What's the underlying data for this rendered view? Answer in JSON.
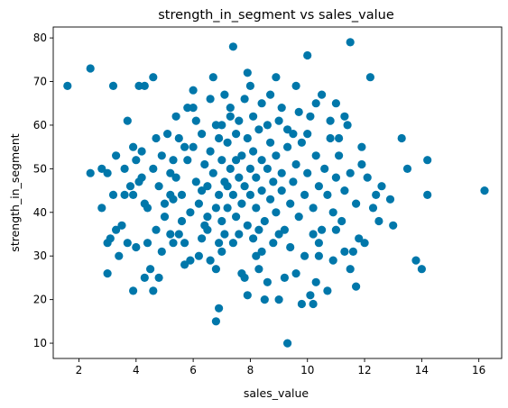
{
  "chart_data": {
    "type": "scatter",
    "title": "strength_in_segment vs sales_value",
    "xlabel": "sales_value",
    "ylabel": "strength_in_segment",
    "xlim": [
      1.1,
      16.8
    ],
    "ylim": [
      6.5,
      82.5
    ],
    "xticks": [
      2,
      4,
      6,
      8,
      10,
      12,
      14,
      16
    ],
    "yticks": [
      10,
      20,
      30,
      40,
      50,
      60,
      70,
      80
    ],
    "grid": false,
    "legend": "none",
    "point_color": "#0077aa",
    "points": [
      [
        1.6,
        69
      ],
      [
        2.4,
        73
      ],
      [
        2.4,
        49
      ],
      [
        2.8,
        41
      ],
      [
        2.8,
        50
      ],
      [
        3.0,
        26
      ],
      [
        3.0,
        33
      ],
      [
        3.1,
        34
      ],
      [
        3.2,
        69
      ],
      [
        3.2,
        44
      ],
      [
        3.3,
        36
      ],
      [
        3.4,
        30
      ],
      [
        3.5,
        37
      ],
      [
        3.6,
        44
      ],
      [
        3.7,
        61
      ],
      [
        3.7,
        33
      ],
      [
        3.9,
        22
      ],
      [
        3.9,
        44
      ],
      [
        3.9,
        55
      ],
      [
        4.0,
        32
      ],
      [
        4.1,
        69
      ],
      [
        4.1,
        47
      ],
      [
        4.2,
        54
      ],
      [
        4.3,
        69
      ],
      [
        4.3,
        42
      ],
      [
        4.3,
        25
      ],
      [
        4.4,
        33
      ],
      [
        4.5,
        27
      ],
      [
        4.6,
        22
      ],
      [
        4.6,
        71
      ],
      [
        4.7,
        57
      ],
      [
        4.8,
        25
      ],
      [
        4.9,
        31
      ],
      [
        5.0,
        42
      ],
      [
        5.2,
        49
      ],
      [
        5.3,
        43
      ],
      [
        5.3,
        33
      ],
      [
        5.4,
        62
      ],
      [
        5.5,
        35
      ],
      [
        5.6,
        38
      ],
      [
        5.7,
        55
      ],
      [
        5.7,
        28
      ],
      [
        5.8,
        64
      ],
      [
        5.9,
        29
      ],
      [
        6.0,
        68
      ],
      [
        6.1,
        61
      ],
      [
        6.2,
        30
      ],
      [
        6.3,
        45
      ],
      [
        6.5,
        36
      ],
      [
        6.6,
        29
      ],
      [
        6.7,
        71
      ],
      [
        6.8,
        27
      ],
      [
        6.8,
        15
      ],
      [
        6.9,
        18
      ],
      [
        6.9,
        57
      ],
      [
        7.0,
        31
      ],
      [
        7.1,
        67
      ],
      [
        7.2,
        46
      ],
      [
        7.4,
        78
      ],
      [
        7.5,
        52
      ],
      [
        7.6,
        35
      ],
      [
        7.7,
        26
      ],
      [
        7.8,
        25
      ],
      [
        7.9,
        21
      ],
      [
        7.9,
        72
      ],
      [
        8.0,
        69
      ],
      [
        8.1,
        62
      ],
      [
        8.2,
        30
      ],
      [
        8.3,
        27
      ],
      [
        8.4,
        31
      ],
      [
        8.5,
        20
      ],
      [
        8.6,
        24
      ],
      [
        8.7,
        67
      ],
      [
        8.9,
        71
      ],
      [
        9.0,
        20
      ],
      [
        9.2,
        25
      ],
      [
        9.3,
        10
      ],
      [
        9.5,
        58
      ],
      [
        9.6,
        26
      ],
      [
        9.6,
        69
      ],
      [
        9.8,
        19
      ],
      [
        10.0,
        76
      ],
      [
        10.1,
        21
      ],
      [
        10.2,
        19
      ],
      [
        10.3,
        24
      ],
      [
        10.4,
        30
      ],
      [
        10.5,
        67
      ],
      [
        10.7,
        22
      ],
      [
        11.0,
        65
      ],
      [
        11.3,
        31
      ],
      [
        11.5,
        79
      ],
      [
        11.5,
        27
      ],
      [
        11.7,
        23
      ],
      [
        11.9,
        51
      ],
      [
        12.0,
        33
      ],
      [
        12.2,
        71
      ],
      [
        12.4,
        44
      ],
      [
        12.6,
        46
      ],
      [
        12.9,
        43
      ],
      [
        13.0,
        37
      ],
      [
        13.3,
        57
      ],
      [
        13.5,
        50
      ],
      [
        13.8,
        29
      ],
      [
        14.0,
        27
      ],
      [
        14.2,
        44
      ],
      [
        14.2,
        52
      ],
      [
        16.2,
        45
      ],
      [
        5.1,
        58
      ],
      [
        5.4,
        48
      ],
      [
        5.6,
        44
      ],
      [
        5.8,
        52
      ],
      [
        5.9,
        40
      ],
      [
        6.0,
        55
      ],
      [
        6.1,
        47
      ],
      [
        6.2,
        42
      ],
      [
        6.3,
        58
      ],
      [
        6.4,
        51
      ],
      [
        6.5,
        39
      ],
      [
        6.5,
        46
      ],
      [
        6.6,
        54
      ],
      [
        6.7,
        49
      ],
      [
        6.8,
        41
      ],
      [
        6.8,
        60
      ],
      [
        6.9,
        44
      ],
      [
        7.0,
        52
      ],
      [
        7.0,
        38
      ],
      [
        7.1,
        47
      ],
      [
        7.2,
        56
      ],
      [
        7.2,
        41
      ],
      [
        7.3,
        50
      ],
      [
        7.3,
        62
      ],
      [
        7.4,
        44
      ],
      [
        7.5,
        58
      ],
      [
        7.5,
        39
      ],
      [
        7.6,
        48
      ],
      [
        7.7,
        53
      ],
      [
        7.7,
        42
      ],
      [
        7.8,
        46
      ],
      [
        7.9,
        57
      ],
      [
        7.9,
        37
      ],
      [
        8.0,
        50
      ],
      [
        8.0,
        44
      ],
      [
        8.1,
        54
      ],
      [
        8.2,
        41
      ],
      [
        8.2,
        48
      ],
      [
        8.3,
        59
      ],
      [
        8.4,
        45
      ],
      [
        8.4,
        52
      ],
      [
        8.5,
        38
      ],
      [
        8.6,
        50
      ],
      [
        8.7,
        43
      ],
      [
        8.7,
        56
      ],
      [
        8.8,
        47
      ],
      [
        8.9,
        40
      ],
      [
        8.9,
        53
      ],
      [
        9.0,
        61
      ],
      [
        9.1,
        45
      ],
      [
        9.1,
        49
      ],
      [
        9.2,
        36
      ],
      [
        9.3,
        55
      ],
      [
        9.4,
        42
      ],
      [
        9.5,
        47
      ],
      [
        9.6,
        51
      ],
      [
        9.7,
        39
      ],
      [
        9.8,
        56
      ],
      [
        9.9,
        44
      ],
      [
        10.0,
        49
      ],
      [
        10.1,
        62
      ],
      [
        10.2,
        41
      ],
      [
        10.3,
        53
      ],
      [
        10.4,
        46
      ],
      [
        10.5,
        36
      ],
      [
        10.6,
        50
      ],
      [
        10.7,
        44
      ],
      [
        10.8,
        57
      ],
      [
        10.9,
        40
      ],
      [
        11.0,
        48
      ],
      [
        11.1,
        53
      ],
      [
        11.2,
        38
      ],
      [
        11.3,
        45
      ],
      [
        11.4,
        60
      ],
      [
        11.5,
        49
      ],
      [
        11.7,
        42
      ],
      [
        11.9,
        55
      ],
      [
        4.6,
        50
      ],
      [
        4.8,
        46
      ],
      [
        4.9,
        53
      ],
      [
        5.0,
        39
      ],
      [
        5.2,
        44
      ],
      [
        5.3,
        52
      ],
      [
        5.5,
        57
      ],
      [
        4.4,
        41
      ],
      [
        4.2,
        48
      ],
      [
        4.0,
        52
      ],
      [
        3.8,
        46
      ],
      [
        3.6,
        50
      ],
      [
        3.3,
        53
      ],
      [
        3.0,
        49
      ],
      [
        12.1,
        48
      ],
      [
        12.3,
        41
      ],
      [
        12.5,
        38
      ],
      [
        11.8,
        34
      ],
      [
        11.6,
        31
      ],
      [
        10.9,
        29
      ],
      [
        10.4,
        33
      ],
      [
        9.9,
        30
      ],
      [
        9.4,
        32
      ],
      [
        8.8,
        33
      ],
      [
        8.1,
        34
      ],
      [
        7.4,
        33
      ],
      [
        6.9,
        33
      ],
      [
        6.3,
        34
      ],
      [
        5.7,
        33
      ],
      [
        5.2,
        35
      ],
      [
        4.7,
        36
      ],
      [
        6.0,
        64
      ],
      [
        6.6,
        66
      ],
      [
        7.3,
        64
      ],
      [
        7.8,
        66
      ],
      [
        8.4,
        65
      ],
      [
        9.1,
        64
      ],
      [
        9.7,
        63
      ],
      [
        10.3,
        65
      ],
      [
        10.8,
        61
      ],
      [
        11.3,
        62
      ],
      [
        7.0,
        60
      ],
      [
        7.6,
        61
      ],
      [
        8.6,
        60
      ],
      [
        9.3,
        59
      ],
      [
        10.0,
        58
      ],
      [
        11.1,
        57
      ],
      [
        6.4,
        37
      ],
      [
        7.1,
        35
      ],
      [
        8.3,
        36
      ],
      [
        9.0,
        35
      ],
      [
        10.2,
        35
      ],
      [
        11.0,
        36
      ]
    ]
  }
}
